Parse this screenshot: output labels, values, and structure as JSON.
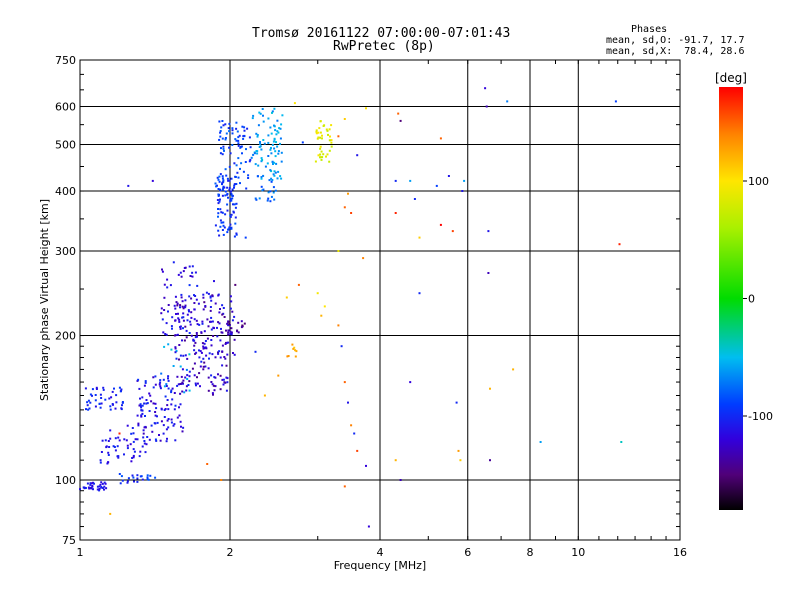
{
  "header": {
    "title": "Tromsø 20161122 07:00:00-07:01:43",
    "subtitle": "RwPretec (8p)",
    "phase_block_title": "Phases",
    "phase_line_o": "mean, sd,O: -91.7, 17.7",
    "phase_line_x": "mean, sd,X:  78.4, 28.6"
  },
  "chart_data": {
    "type": "scatter",
    "title": "Tromsø 20161122 07:00:00-07:01:43",
    "subtitle": "RwPretec (8p)",
    "xlabel": "Frequency [MHz]",
    "ylabel": "Stationary phase Virtual Height [km]",
    "x_scale": "log",
    "y_scale": "log",
    "xlim": [
      1,
      16
    ],
    "ylim": [
      75,
      750
    ],
    "x_ticks": [
      "1",
      "2",
      "4",
      "6",
      "8",
      "10",
      "16"
    ],
    "x_tick_values": [
      1,
      2,
      4,
      6,
      8,
      10,
      16
    ],
    "x_gridlines": [
      2,
      4,
      6,
      8,
      10
    ],
    "y_ticks": [
      "75",
      "100",
      "200",
      "300",
      "400",
      "500",
      "600",
      "750"
    ],
    "y_tick_values": [
      75,
      100,
      200,
      300,
      400,
      500,
      600,
      750
    ],
    "y_gridlines": [
      100,
      200,
      300,
      400,
      500,
      600
    ],
    "grid": true,
    "colorbar": {
      "label": "[deg]",
      "range": [
        -180,
        180
      ],
      "ticks": [
        "100",
        "0",
        "-100"
      ],
      "tick_values": [
        100,
        0,
        -100
      ]
    },
    "clusters": [
      {
        "f": [
          1.0,
          1.13
        ],
        "h": [
          95,
          99
        ],
        "phase": [
          -120,
          -100
        ],
        "n": 35
      },
      {
        "f": [
          1.18,
          1.42
        ],
        "h": [
          98,
          103
        ],
        "phase": [
          -110,
          -80
        ],
        "n": 22
      },
      {
        "f": [
          1.02,
          1.22
        ],
        "h": [
          140,
          156
        ],
        "phase": [
          -115,
          -90
        ],
        "n": 45
      },
      {
        "f": [
          1.1,
          1.38
        ],
        "h": [
          108,
          130
        ],
        "phase": [
          -120,
          -95
        ],
        "n": 55
      },
      {
        "f": [
          1.3,
          1.62
        ],
        "h": [
          120,
          165
        ],
        "phase": [
          -130,
          -95
        ],
        "n": 110
      },
      {
        "f": [
          1.45,
          1.68
        ],
        "h": [
          150,
          195
        ],
        "phase": [
          -75,
          -40
        ],
        "n": 14
      },
      {
        "f": [
          1.55,
          1.98
        ],
        "h": [
          150,
          245
        ],
        "phase": [
          -145,
          -100
        ],
        "n": 170
      },
      {
        "f": [
          1.45,
          1.72
        ],
        "h": [
          200,
          285
        ],
        "phase": [
          -130,
          -95
        ],
        "n": 60
      },
      {
        "f": [
          1.75,
          2.05
        ],
        "h": [
          180,
          260
        ],
        "phase": [
          -135,
          -100
        ],
        "n": 50
      },
      {
        "f": [
          1.98,
          2.15
        ],
        "h": [
          200,
          215
        ],
        "phase": [
          -165,
          -120
        ],
        "n": 18
      },
      {
        "f": [
          1.87,
          2.08
        ],
        "h": [
          320,
          430
        ],
        "phase": [
          -110,
          -80
        ],
        "n": 90
      },
      {
        "f": [
          1.9,
          2.2
        ],
        "h": [
          400,
          560
        ],
        "phase": [
          -105,
          -75
        ],
        "n": 80
      },
      {
        "f": [
          2.2,
          2.55
        ],
        "h": [
          420,
          595
        ],
        "phase": [
          -75,
          -45
        ],
        "n": 90
      },
      {
        "f": [
          2.25,
          2.5
        ],
        "h": [
          380,
          430
        ],
        "phase": [
          -90,
          -60
        ],
        "n": 20
      },
      {
        "f": [
          2.95,
          3.2
        ],
        "h": [
          460,
          560
        ],
        "phase": [
          70,
          100
        ],
        "n": 40
      },
      {
        "f": [
          2.6,
          2.75
        ],
        "h": [
          180,
          192
        ],
        "phase": [
          110,
          140
        ],
        "n": 8
      }
    ],
    "scattered": [
      [
        2.6,
        240,
        110
      ],
      [
        2.75,
        255,
        150
      ],
      [
        3.0,
        245,
        95
      ],
      [
        3.05,
        220,
        120
      ],
      [
        3.1,
        230,
        100
      ],
      [
        3.3,
        300,
        90
      ],
      [
        3.4,
        370,
        150
      ],
      [
        3.45,
        395,
        130
      ],
      [
        3.5,
        360,
        160
      ],
      [
        3.7,
        290,
        140
      ],
      [
        2.25,
        185,
        -100
      ],
      [
        2.35,
        150,
        120
      ],
      [
        2.5,
        165,
        130
      ],
      [
        3.3,
        210,
        140
      ],
      [
        3.35,
        190,
        -100
      ],
      [
        3.4,
        160,
        150
      ],
      [
        3.45,
        145,
        -110
      ],
      [
        3.5,
        130,
        140
      ],
      [
        3.55,
        125,
        -100
      ],
      [
        3.6,
        115,
        160
      ],
      [
        3.4,
        97,
        150
      ],
      [
        3.75,
        107,
        -120
      ],
      [
        3.8,
        80,
        -120
      ],
      [
        4.3,
        110,
        120
      ],
      [
        4.4,
        100,
        -130
      ],
      [
        4.3,
        420,
        -100
      ],
      [
        4.3,
        360,
        170
      ],
      [
        4.35,
        580,
        150
      ],
      [
        4.4,
        560,
        -150
      ],
      [
        4.6,
        160,
        -120
      ],
      [
        4.6,
        420,
        -60
      ],
      [
        4.7,
        385,
        -100
      ],
      [
        4.8,
        320,
        110
      ],
      [
        4.8,
        245,
        -100
      ],
      [
        5.2,
        410,
        -90
      ],
      [
        5.3,
        515,
        150
      ],
      [
        5.3,
        340,
        180
      ],
      [
        5.5,
        430,
        -110
      ],
      [
        5.6,
        330,
        160
      ],
      [
        5.7,
        145,
        -100
      ],
      [
        5.75,
        115,
        130
      ],
      [
        5.8,
        110,
        110
      ],
      [
        5.85,
        400,
        -110
      ],
      [
        5.9,
        420,
        -60
      ],
      [
        6.5,
        655,
        -120
      ],
      [
        6.55,
        600,
        -130
      ],
      [
        6.6,
        330,
        -110
      ],
      [
        6.6,
        270,
        -130
      ],
      [
        6.65,
        155,
        120
      ],
      [
        6.65,
        110,
        -140
      ],
      [
        7.2,
        615,
        -70
      ],
      [
        7.4,
        170,
        120
      ],
      [
        8.4,
        120,
        -60
      ],
      [
        11.9,
        615,
        -90
      ],
      [
        12.1,
        310,
        170
      ],
      [
        12.2,
        120,
        -40
      ],
      [
        1.4,
        420,
        -120
      ],
      [
        1.25,
        410,
        -110
      ],
      [
        1.8,
        108,
        150
      ],
      [
        1.92,
        100,
        140
      ],
      [
        1.2,
        125,
        170
      ],
      [
        1.15,
        85,
        120
      ],
      [
        2.05,
        255,
        -150
      ],
      [
        2.15,
        320,
        -90
      ],
      [
        2.7,
        610,
        100
      ],
      [
        3.3,
        520,
        150
      ],
      [
        3.4,
        565,
        110
      ],
      [
        3.6,
        475,
        -110
      ],
      [
        3.75,
        595,
        100
      ],
      [
        2.8,
        505,
        -90
      ]
    ]
  }
}
